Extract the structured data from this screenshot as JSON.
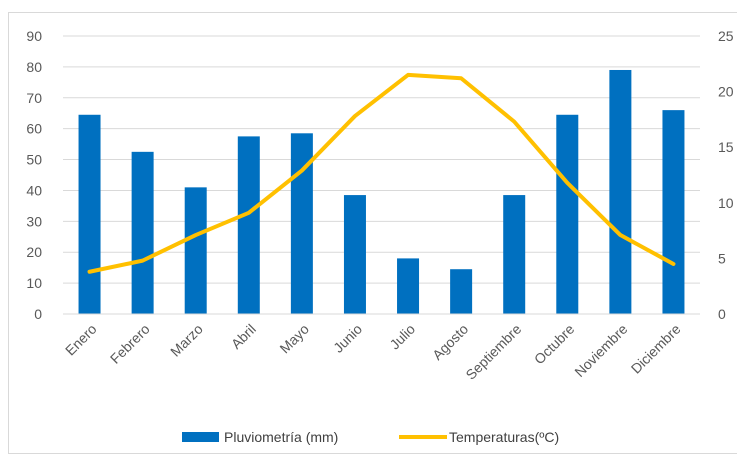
{
  "chart_data": {
    "type": "bar",
    "categories": [
      "Enero",
      "Febrero",
      "Marzo",
      "Abril",
      "Mayo",
      "Junio",
      "Julio",
      "Agosto",
      "Septiembre",
      "Octubre",
      "Noviembre",
      "Diciembre"
    ],
    "series": [
      {
        "name": "Pluviometría (mm)",
        "chart_type": "bar",
        "axis": "left",
        "color": "#0070c0",
        "values": [
          64.5,
          52.5,
          41,
          57.5,
          58.5,
          38.5,
          18,
          14.5,
          38.5,
          64.5,
          79,
          66
        ]
      },
      {
        "name": "Temperaturas(ºC)",
        "chart_type": "line",
        "axis": "right",
        "color": "#ffc000",
        "values": [
          3.8,
          4.8,
          7.1,
          9.1,
          12.9,
          17.8,
          21.5,
          21.2,
          17.3,
          11.8,
          7.1,
          4.5
        ]
      }
    ],
    "y_left": {
      "min": 0,
      "max": 90,
      "ticks": [
        "0",
        "10",
        "20",
        "30",
        "40",
        "50",
        "60",
        "70",
        "80",
        "90"
      ]
    },
    "y_right": {
      "min": 0,
      "max": 25,
      "ticks": [
        "0",
        "5",
        "10",
        "15",
        "20",
        "25"
      ]
    },
    "grid": true,
    "legend_position": "bottom",
    "title": "",
    "xlabel": "",
    "ylabel": ""
  }
}
